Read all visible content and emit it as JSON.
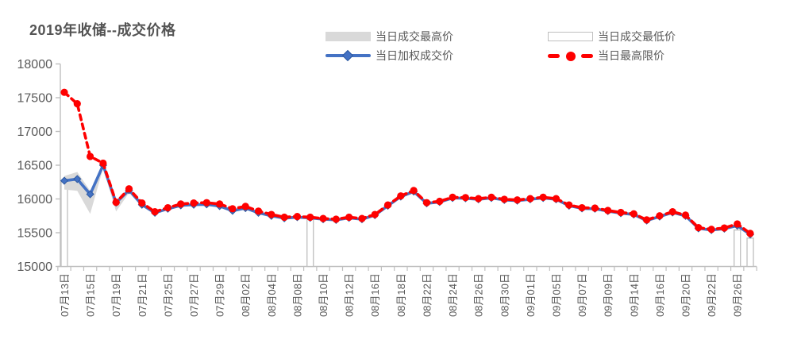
{
  "title": "2019年收储--成交价格",
  "legend": {
    "items": [
      {
        "label": "当日成交最高价",
        "swatch": "gray-band"
      },
      {
        "label": "当日成交最低价",
        "swatch": "white-bar"
      },
      {
        "label": "当日加权成交价",
        "swatch": "blue-line"
      },
      {
        "label": "当日最高限价",
        "swatch": "red-dashed-line"
      }
    ]
  },
  "colors": {
    "red": "#FE0000",
    "blue": "#4472C4",
    "blue_dark": "#2E5AA0",
    "band": "#D9D9D9",
    "axis": "#BFBFBF",
    "tick_text": "#595959",
    "title_text": "#545454",
    "bar_fill": "#FFFFFF",
    "bar_border": "#BFBFBF"
  },
  "chart_data": {
    "type": "line",
    "title": "2019年收储--成交价格",
    "xlabel": "",
    "ylabel": "",
    "ylim": [
      15000,
      18000
    ],
    "ytick_step": 500,
    "yticks": [
      18000,
      17500,
      17000,
      16500,
      16000,
      15500,
      15000
    ],
    "grid": false,
    "legend_position": "top",
    "n_points": 54,
    "x_label_every": 2,
    "x_labels": [
      "07月13日",
      "07月15日",
      "07月19日",
      "07月21日",
      "07月25日",
      "07月27日",
      "07月29日",
      "08月02日",
      "08月04日",
      "08月08日",
      "08月10日",
      "08月12日",
      "08月16日",
      "08月18日",
      "08月22日",
      "08月24日",
      "08月26日",
      "08月30日",
      "09月01日",
      "09月05日",
      "09月07日",
      "09月09日",
      "09月14日",
      "09月16日",
      "09月20日",
      "09月22日",
      "09月26日"
    ],
    "series": [
      {
        "name": "当日最高限价",
        "style": "dashed-line",
        "marker": "circle",
        "color": "#FE0000",
        "values": [
          17580,
          17410,
          16630,
          16530,
          15950,
          16150,
          15940,
          15810,
          15870,
          15925,
          15940,
          15945,
          15925,
          15855,
          15890,
          15820,
          15770,
          15730,
          15740,
          15730,
          15710,
          15700,
          15730,
          15710,
          15770,
          15910,
          16045,
          16125,
          15945,
          15965,
          16025,
          16020,
          16005,
          16025,
          15995,
          15985,
          16005,
          16025,
          16005,
          15910,
          15870,
          15865,
          15830,
          15800,
          15780,
          15690,
          15750,
          15810,
          15760,
          15575,
          15550,
          15570,
          15630,
          15490
        ]
      },
      {
        "name": "当日加权成交价",
        "style": "solid-line",
        "marker": "diamond",
        "color": "#4472C4",
        "values": [
          16270,
          16295,
          16070,
          16500,
          15945,
          16130,
          15915,
          15795,
          15855,
          15905,
          15915,
          15920,
          15895,
          15825,
          15865,
          15795,
          15750,
          15715,
          15730,
          15720,
          15700,
          15690,
          15720,
          15700,
          15760,
          15900,
          16035,
          16110,
          15935,
          15955,
          16015,
          16010,
          15995,
          16015,
          15985,
          15975,
          15995,
          16015,
          15995,
          15900,
          15860,
          15855,
          15820,
          15790,
          15770,
          15680,
          15740,
          15800,
          15750,
          15565,
          15540,
          15560,
          15605,
          15475
        ]
      },
      {
        "name": "当日成交最高价",
        "style": "band",
        "color": "#D9D9D9",
        "points": [
          {
            "i": 0,
            "upper": 16340,
            "lower": 16140
          },
          {
            "i": 1,
            "upper": 16400,
            "lower": 16120
          },
          {
            "i": 2,
            "upper": 16120,
            "lower": 15780
          },
          {
            "i": 3,
            "upper": 16510,
            "lower": 16455
          },
          {
            "i": 4,
            "upper": 15985,
            "lower": 15815
          },
          {
            "i": 5,
            "upper": 16135,
            "lower": 16090
          }
        ]
      },
      {
        "name": "当日成交最低价",
        "style": "bar",
        "fill": "#FFFFFF",
        "border": "#BFBFBF",
        "bars": [
          {
            "i": 0,
            "top": 16250
          },
          {
            "i": 19,
            "top": 15700
          },
          {
            "i": 52,
            "top": 15540
          },
          {
            "i": 53,
            "top": 15420
          }
        ]
      }
    ]
  }
}
